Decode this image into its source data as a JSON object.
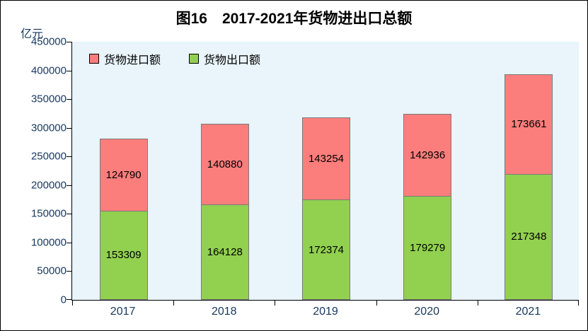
{
  "chart_data": {
    "type": "bar",
    "stacked": true,
    "title": "图16　2017-2021年货物进出口总额",
    "unit_label": "亿元",
    "categories": [
      "2017",
      "2018",
      "2019",
      "2020",
      "2021"
    ],
    "series": [
      {
        "name": "货物出口额",
        "color": "#92D050",
        "values": [
          153309,
          164128,
          172374,
          179279,
          217348
        ]
      },
      {
        "name": "货物进口额",
        "color": "#FB7E7C",
        "values": [
          124790,
          140880,
          143254,
          142936,
          173661
        ]
      }
    ],
    "ylim": [
      0,
      450000
    ],
    "ytick_step": 50000,
    "legend_position": "top-left",
    "legend_order": [
      "货物进口额",
      "货物出口额"
    ],
    "plot_background": "#E9F4FB",
    "grid": false
  }
}
